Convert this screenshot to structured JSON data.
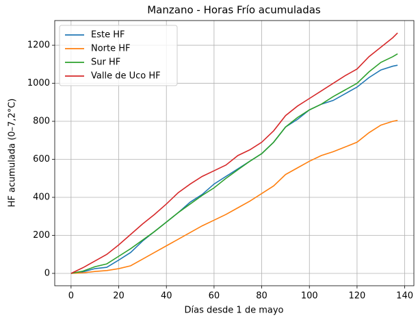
{
  "chart_data": {
    "type": "line",
    "title": "Manzano - Horas Frío acumuladas",
    "x_label": "Días desde 1 de mayo",
    "y_label": "HF acumulada (0–7,2°C)",
    "x": [
      0,
      5,
      10,
      15,
      20,
      25,
      30,
      35,
      40,
      45,
      50,
      55,
      60,
      65,
      70,
      75,
      80,
      85,
      90,
      95,
      100,
      105,
      110,
      115,
      120,
      125,
      130,
      135,
      137
    ],
    "series": [
      {
        "name": "Este HF",
        "color": "#1f77b4",
        "values": [
          0,
          8,
          25,
          32,
          70,
          110,
          170,
          220,
          270,
          320,
          375,
          415,
          470,
          510,
          550,
          590,
          630,
          690,
          770,
          810,
          860,
          890,
          910,
          945,
          980,
          1030,
          1070,
          1090,
          1095
        ]
      },
      {
        "name": "Norte HF",
        "color": "#ff7f0e",
        "values": [
          0,
          3,
          10,
          15,
          25,
          40,
          75,
          110,
          145,
          180,
          215,
          250,
          280,
          310,
          345,
          380,
          420,
          460,
          520,
          555,
          590,
          620,
          640,
          665,
          690,
          740,
          780,
          800,
          805
        ]
      },
      {
        "name": "Sur HF",
        "color": "#2ca02c",
        "values": [
          0,
          12,
          35,
          50,
          90,
          130,
          175,
          220,
          270,
          320,
          365,
          410,
          450,
          500,
          545,
          590,
          630,
          690,
          770,
          820,
          860,
          890,
          930,
          965,
          1000,
          1060,
          1110,
          1140,
          1155
        ]
      },
      {
        "name": "Valle de Uco HF",
        "color": "#d62728",
        "values": [
          0,
          30,
          65,
          100,
          150,
          205,
          260,
          310,
          365,
          425,
          470,
          510,
          540,
          570,
          620,
          650,
          690,
          750,
          830,
          880,
          920,
          960,
          1000,
          1040,
          1075,
          1140,
          1190,
          1240,
          1265
        ]
      }
    ],
    "xlim": [
      -6.85,
      143.85
    ],
    "xticks": [
      0,
      20,
      40,
      60,
      80,
      100,
      120,
      140
    ],
    "ylim": [
      -65,
      1330
    ],
    "yticks": [
      0,
      200,
      400,
      600,
      800,
      1000,
      1200
    ],
    "grid": true,
    "legend": "upper-left"
  }
}
